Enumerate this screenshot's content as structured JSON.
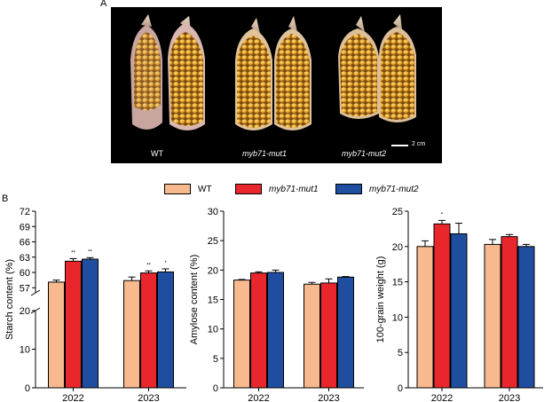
{
  "panels": {
    "a": "A",
    "b": "B"
  },
  "photo": {
    "labels": [
      "WT",
      "myb71-mut1",
      "myb71-mut2"
    ],
    "scale_bar": "2 cm"
  },
  "legend": [
    {
      "label": "WT",
      "color": "#f7b98d"
    },
    {
      "label": "myb71-mut1",
      "color": "#e8262b"
    },
    {
      "label": "myb71-mut2",
      "color": "#1f4ea1"
    }
  ],
  "chart_data": [
    {
      "type": "bar",
      "ylabel": "Starch content (%)",
      "categories": [
        "2022",
        "2023"
      ],
      "axis_break": true,
      "yticks_lower": [
        "0",
        "10",
        "20"
      ],
      "yticks_upper": [
        "57",
        "60",
        "63",
        "66",
        "69",
        "72"
      ],
      "ylim_lower": [
        0,
        20
      ],
      "ylim_upper": [
        56,
        72
      ],
      "series": [
        {
          "name": "WT",
          "values": [
            58.1,
            58.4
          ],
          "errors": [
            0.4,
            0.7
          ]
        },
        {
          "name": "myb71-mut1",
          "values": [
            62.2,
            59.9
          ],
          "errors": [
            0.5,
            0.4
          ]
        },
        {
          "name": "myb71-mut2",
          "values": [
            62.6,
            60.1
          ],
          "errors": [
            0.3,
            0.6
          ]
        }
      ],
      "significance": [
        [
          "",
          "**",
          "**"
        ],
        [
          "",
          "**",
          "*"
        ]
      ]
    },
    {
      "type": "bar",
      "ylabel": "Amylose content (%)",
      "categories": [
        "2022",
        "2023"
      ],
      "yticks": [
        "0",
        "5",
        "10",
        "15",
        "20",
        "25",
        "30"
      ],
      "ylim": [
        0,
        30
      ],
      "series": [
        {
          "name": "WT",
          "values": [
            18.3,
            17.6
          ],
          "errors": [
            0.1,
            0.3
          ]
        },
        {
          "name": "myb71-mut1",
          "values": [
            19.5,
            17.8
          ],
          "errors": [
            0.2,
            0.7
          ]
        },
        {
          "name": "myb71-mut2",
          "values": [
            19.6,
            18.8
          ],
          "errors": [
            0.4,
            0.1
          ]
        }
      ]
    },
    {
      "type": "bar",
      "ylabel": "100-grain weight (g)",
      "categories": [
        "2022",
        "2023"
      ],
      "yticks": [
        "0",
        "5",
        "10",
        "15",
        "20",
        "25"
      ],
      "ylim": [
        0,
        25
      ],
      "series": [
        {
          "name": "WT",
          "values": [
            20.0,
            20.3
          ],
          "errors": [
            0.8,
            0.7
          ]
        },
        {
          "name": "myb71-mut1",
          "values": [
            23.2,
            21.4
          ],
          "errors": [
            0.5,
            0.3
          ]
        },
        {
          "name": "myb71-mut2",
          "values": [
            21.8,
            20.0
          ],
          "errors": [
            1.5,
            0.3
          ]
        }
      ],
      "significance": [
        [
          "",
          "*",
          ""
        ],
        [
          "",
          "",
          ""
        ]
      ]
    }
  ]
}
